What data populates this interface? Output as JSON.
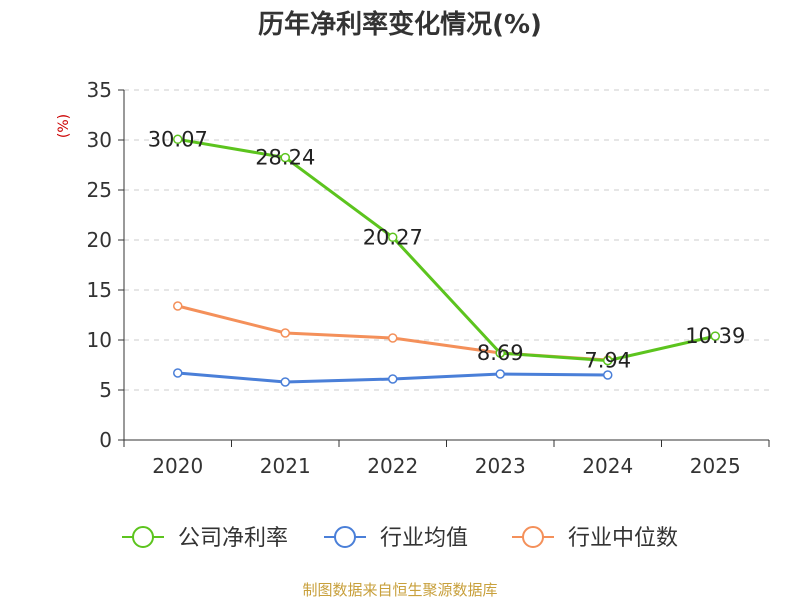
{
  "chart_data": {
    "type": "line",
    "title": "历年净利率变化情况(%)",
    "ylabel": "(%)",
    "xlabel": "",
    "categories": [
      "2020",
      "2021",
      "2022",
      "2023",
      "2024",
      "2025"
    ],
    "ylim": [
      0,
      35
    ],
    "yticks": [
      0,
      5,
      10,
      15,
      20,
      25,
      30,
      35
    ],
    "grid": true,
    "legend_position": "bottom",
    "series": [
      {
        "name": "公司净利率",
        "color": "#5cc41e",
        "values": [
          30.07,
          28.24,
          20.27,
          8.69,
          7.94,
          10.39
        ],
        "labels": [
          "30.07",
          "28.24",
          "20.27",
          "8.69",
          "7.94",
          "10.39"
        ]
      },
      {
        "name": "行业均值",
        "color": "#4a7fd8",
        "values": [
          6.7,
          5.8,
          6.1,
          6.6,
          6.5,
          null
        ]
      },
      {
        "name": "行业中位数",
        "color": "#f4905a",
        "values": [
          13.4,
          10.7,
          10.2,
          8.7,
          8.0,
          null
        ]
      }
    ]
  },
  "source": {
    "text": "制图数据来自恒生聚源数据库",
    "color": "#c8a03c"
  },
  "ylabel_color": "#cc0000"
}
